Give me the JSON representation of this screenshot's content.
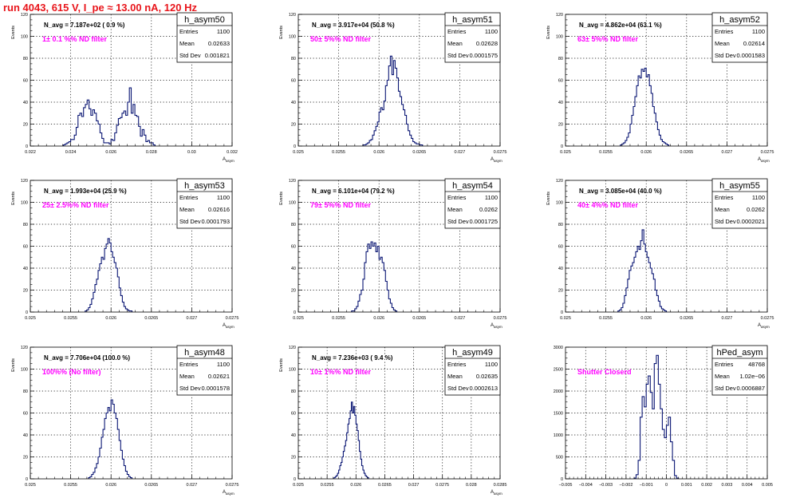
{
  "page_title": "run 4043,   615 V, I_pe ≈ 13.00 nA, 120 Hz",
  "colors": {
    "title": "#e8141a",
    "hist": "#0a1673",
    "annotation": "#ff00ff",
    "grid": "#000000"
  },
  "chart_data": [
    {
      "type": "bar",
      "name": "h_asym50",
      "title": "N_avg = 7.187e+02 ( 0.9 %)",
      "annotation": "1± 0.1 %% ND filter",
      "stats": {
        "entries_label": "Entries",
        "entries": "1100",
        "mean_label": "Mean",
        "mean": "0.02633",
        "std_label": "Std Dev",
        "std": "0.001821"
      },
      "xlabel": "A_asym",
      "ylabel": "Events",
      "xlim": [
        0.021,
        0.032
      ],
      "ylim": [
        0,
        120
      ],
      "xticks": [
        "0.022",
        "0.024",
        "0.026",
        "0.028",
        "0.03",
        "0.032"
      ],
      "yticks": [
        "0",
        "20",
        "40",
        "60",
        "80",
        "100",
        "120"
      ],
      "grid": true,
      "bins": {
        "start": 0.0228,
        "width": 0.0001,
        "counts": [
          1,
          2,
          3,
          4,
          6,
          6,
          10,
          17,
          28,
          30,
          27,
          35,
          38,
          42,
          34,
          28,
          33,
          30,
          23,
          20,
          12,
          7,
          3,
          3,
          3,
          2,
          6,
          5,
          12,
          19,
          25,
          26,
          30,
          32,
          28,
          40,
          53,
          30,
          38,
          28,
          27,
          18,
          9,
          15,
          10,
          4,
          5,
          3,
          3,
          1
        ]
      }
    },
    {
      "type": "bar",
      "name": "h_asym51",
      "title": "N_avg = 3.917e+04 (50.8 %)",
      "annotation": "50± 5%% ND filter",
      "stats": {
        "entries_label": "Entries",
        "entries": "1100",
        "mean_label": "Mean",
        "mean": "0.02628",
        "std_label": "Std Dev",
        "std": "0.0001575"
      },
      "xlabel": "A_asym",
      "ylabel": "Events",
      "xlim": [
        0.025,
        0.0275
      ],
      "ylim": [
        0,
        120
      ],
      "xticks": [
        "0.025",
        "0.0255",
        "0.026",
        "0.0265",
        "0.027",
        "0.0275"
      ],
      "yticks": [
        "0",
        "20",
        "40",
        "60",
        "80",
        "100",
        "120"
      ],
      "grid": true,
      "bins": {
        "start": 0.0258,
        "width": 2e-05,
        "counts": [
          1,
          1,
          2,
          3,
          5,
          6,
          10,
          14,
          18,
          22,
          31,
          35,
          33,
          41,
          55,
          60,
          73,
          82,
          65,
          78,
          71,
          62,
          50,
          45,
          38,
          33,
          28,
          20,
          14,
          10,
          7,
          4,
          3,
          2,
          2,
          1,
          1
        ]
      }
    },
    {
      "type": "bar",
      "name": "h_asym52",
      "title": "N_avg = 4.862e+04 (63.1 %)",
      "annotation": "63± 5%% ND filter",
      "stats": {
        "entries_label": "Entries",
        "entries": "1100",
        "mean_label": "Mean",
        "mean": "0.02614",
        "std_label": "Std Dev",
        "std": "0.0001583"
      },
      "xlabel": "A_asym",
      "ylabel": "Events",
      "xlim": [
        0.025,
        0.0275
      ],
      "ylim": [
        0,
        120
      ],
      "xticks": [
        "0.025",
        "0.0255",
        "0.026",
        "0.0265",
        "0.027",
        "0.0275"
      ],
      "yticks": [
        "0",
        "20",
        "40",
        "60",
        "80",
        "100",
        "120"
      ],
      "grid": true,
      "bins": {
        "start": 0.02568,
        "width": 2e-05,
        "counts": [
          1,
          2,
          3,
          5,
          8,
          12,
          20,
          28,
          36,
          45,
          55,
          64,
          62,
          70,
          68,
          71,
          63,
          65,
          55,
          48,
          36,
          30,
          22,
          15,
          10,
          6,
          4,
          3,
          2,
          1
        ]
      }
    },
    {
      "type": "bar",
      "name": "h_asym53",
      "title": "N_avg = 1.993e+04 (25.9 %)",
      "annotation": "25± 2.5%% ND filter",
      "stats": {
        "entries_label": "Entries",
        "entries": "1100",
        "mean_label": "Mean",
        "mean": "0.02616",
        "std_label": "Std Dev",
        "std": "0.0001793"
      },
      "xlabel": "A_asym",
      "ylabel": "Events",
      "xlim": [
        0.025,
        0.0275
      ],
      "ylim": [
        0,
        120
      ],
      "xticks": [
        "0.025",
        "0.0255",
        "0.026",
        "0.0265",
        "0.027",
        "0.0275"
      ],
      "yticks": [
        "0",
        "20",
        "40",
        "60",
        "80",
        "100",
        "120"
      ],
      "grid": true,
      "bins": {
        "start": 0.02568,
        "width": 2e-05,
        "counts": [
          1,
          2,
          4,
          7,
          12,
          18,
          25,
          30,
          38,
          44,
          50,
          48,
          58,
          62,
          67,
          63,
          55,
          50,
          45,
          40,
          32,
          22,
          15,
          9,
          5,
          3,
          2,
          1,
          1
        ]
      }
    },
    {
      "type": "bar",
      "name": "h_asym54",
      "title": "N_avg = 6.101e+04 (79.2 %)",
      "annotation": "79± 5%% ND filter",
      "stats": {
        "entries_label": "Entries",
        "entries": "1100",
        "mean_label": "Mean",
        "mean": "0.0262",
        "std_label": "Std Dev",
        "std": "0.0001725"
      },
      "xlabel": "A_asym",
      "ylabel": "Events",
      "xlim": [
        0.025,
        0.0275
      ],
      "ylim": [
        0,
        120
      ],
      "xticks": [
        "0.025",
        "0.0255",
        "0.026",
        "0.0265",
        "0.027",
        "0.0275"
      ],
      "yticks": [
        "0",
        "20",
        "40",
        "60",
        "80",
        "100",
        "120"
      ],
      "grid": true,
      "bins": {
        "start": 0.02566,
        "width": 2e-05,
        "counts": [
          1,
          1,
          3,
          5,
          10,
          16,
          20,
          30,
          45,
          55,
          62,
          58,
          64,
          60,
          63,
          55,
          60,
          48,
          50,
          45,
          38,
          28,
          20,
          12,
          8,
          4,
          2,
          1
        ]
      }
    },
    {
      "type": "bar",
      "name": "h_asym55",
      "title": "N_avg = 3.085e+04 (40.0 %)",
      "annotation": "40± 4%% ND filter",
      "stats": {
        "entries_label": "Entries",
        "entries": "1100",
        "mean_label": "Mean",
        "mean": "0.0262",
        "std_label": "Std Dev",
        "std": "0.0002021"
      },
      "xlabel": "A_asym",
      "ylabel": "Events",
      "xlim": [
        0.025,
        0.0275
      ],
      "ylim": [
        0,
        120
      ],
      "xticks": [
        "0.025",
        "0.0255",
        "0.026",
        "0.0265",
        "0.027",
        "0.0275"
      ],
      "yticks": [
        "0",
        "20",
        "40",
        "60",
        "80",
        "100",
        "120"
      ],
      "grid": true,
      "bins": {
        "start": 0.02565,
        "width": 2e-05,
        "counts": [
          1,
          2,
          4,
          8,
          15,
          22,
          30,
          38,
          42,
          45,
          50,
          55,
          60,
          57,
          65,
          75,
          62,
          55,
          50,
          45,
          40,
          35,
          30,
          20,
          15,
          10,
          5,
          3,
          2,
          1
        ]
      }
    },
    {
      "type": "bar",
      "name": "h_asym48",
      "title": "N_avg = 7.706e+04 (100.0 %)",
      "annotation": "100%% (No filter)",
      "stats": {
        "entries_label": "Entries",
        "entries": "1100",
        "mean_label": "Mean",
        "mean": "0.02621",
        "std_label": "Std Dev",
        "std": "0.0001578"
      },
      "xlabel": "A_asym",
      "ylabel": "Events",
      "xlim": [
        0.025,
        0.0275
      ],
      "ylim": [
        0,
        120
      ],
      "xticks": [
        "0.025",
        "0.0255",
        "0.026",
        "0.0265",
        "0.027",
        "0.0275"
      ],
      "yticks": [
        "0",
        "20",
        "40",
        "60",
        "80",
        "100",
        "120"
      ],
      "grid": true,
      "bins": {
        "start": 0.02572,
        "width": 2e-05,
        "counts": [
          1,
          2,
          4,
          6,
          10,
          14,
          20,
          28,
          38,
          45,
          55,
          60,
          65,
          62,
          72,
          68,
          60,
          55,
          45,
          35,
          26,
          18,
          12,
          7,
          4,
          2,
          1
        ]
      }
    },
    {
      "type": "bar",
      "name": "h_asym49",
      "title": "N_avg = 7.236e+03 ( 9.4 %)",
      "annotation": "10± 1%% ND filter",
      "stats": {
        "entries_label": "Entries",
        "entries": "1100",
        "mean_label": "Mean",
        "mean": "0.02635",
        "std_label": "Std Dev",
        "std": "0.0002613"
      },
      "xlabel": "A_asym",
      "ylabel": "Events",
      "xlim": [
        0.025,
        0.0285
      ],
      "ylim": [
        0,
        120
      ],
      "xticks": [
        "0.025",
        "0.0255",
        "0.026",
        "0.0265",
        "0.027",
        "0.0275",
        "0.028",
        "0.0285"
      ],
      "yticks": [
        "0",
        "20",
        "40",
        "60",
        "80",
        "100",
        "120"
      ],
      "grid": true,
      "bins": {
        "start": 0.02562,
        "width": 2e-05,
        "counts": [
          1,
          2,
          3,
          5,
          8,
          12,
          15,
          20,
          25,
          30,
          35,
          42,
          50,
          55,
          62,
          70,
          60,
          66,
          58,
          50,
          44,
          35,
          25,
          18,
          12,
          8,
          5,
          3,
          2,
          1
        ]
      }
    },
    {
      "type": "bar",
      "name": "hPed_asym",
      "title": "",
      "annotation": "Shutter Closerd",
      "stats": {
        "entries_label": "Entries",
        "entries": "48768",
        "mean_label": "Mean",
        "mean": "1.02e−06",
        "std_label": "Std Dev",
        "std": "0.0006887"
      },
      "xlabel": "",
      "ylabel": "",
      "xlim": [
        -0.005,
        0.005
      ],
      "ylim": [
        0,
        3200
      ],
      "xticks": [
        "−0.005",
        "−0.004",
        "−0.003",
        "−0.002",
        "−0.001",
        "0",
        "0.001",
        "0.002",
        "0.003",
        "0.004",
        "0.005"
      ],
      "yticks": [
        "0",
        "500",
        "1000",
        "1500",
        "2000",
        "2500",
        "3000"
      ],
      "grid": true,
      "bins": {
        "start": -0.0016,
        "width": 0.0001,
        "counts": [
          20,
          100,
          450,
          1500,
          2000,
          1750,
          2300,
          2500,
          2100,
          1700,
          2800,
          3000,
          2300,
          1700,
          1200,
          1000,
          1300,
          1500,
          900,
          450,
          80,
          20
        ]
      }
    }
  ]
}
